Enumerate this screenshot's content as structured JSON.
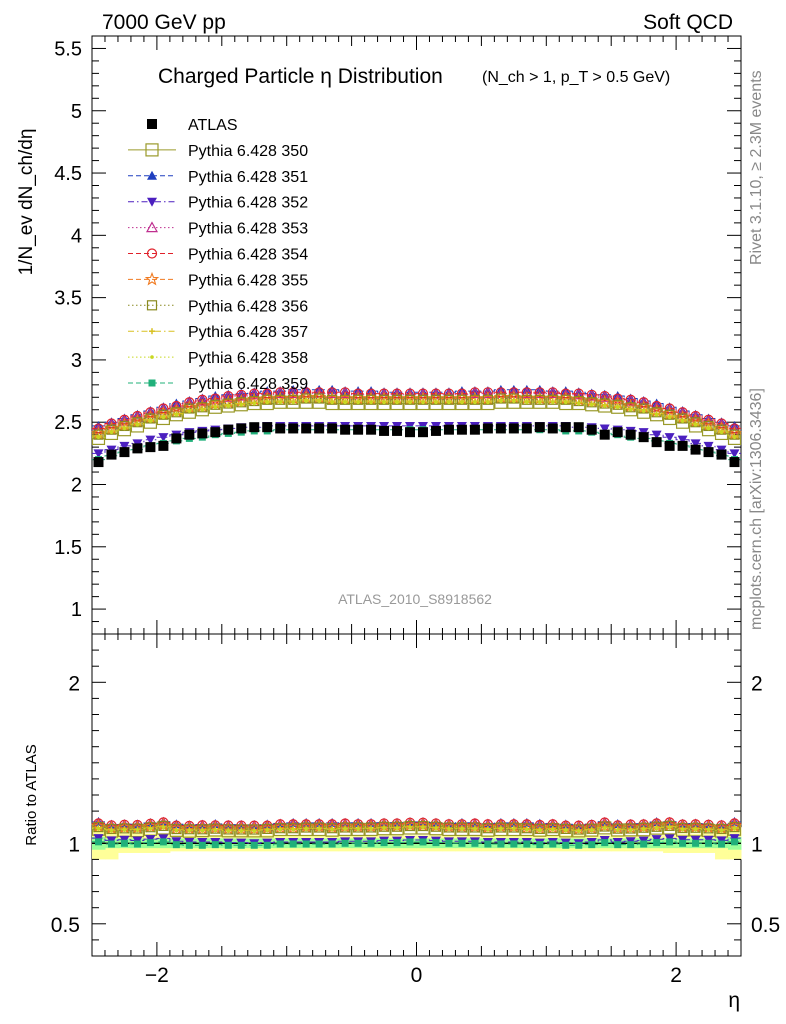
{
  "header": {
    "left": "7000 GeV pp",
    "right": "Soft QCD"
  },
  "side_labels": {
    "right_top": "Rivet 3.1.10, ≥ 2.3M events",
    "right_bottom": "mcplots.cern.ch [arXiv:1306.3436]"
  },
  "analysis_label": "ATLAS_2010_S8918562",
  "colors": {
    "ATLAS": "#000000",
    "p350": "#9a9a2a",
    "p351": "#1f3fbf",
    "p352": "#4b1fbf",
    "p353": "#bf2f8f",
    "p354": "#e0202a",
    "p355": "#f07a20",
    "p356": "#8a8a20",
    "p357": "#d8c020",
    "p358": "#c8d820",
    "p359": "#20b07a",
    "band_inner": "#99ff99",
    "band_outer": "#ffff99"
  },
  "chart_data": [
    {
      "type": "scatter",
      "title": "Charged Particle η Distribution",
      "title_suffix": "(N_ch > 1, p_T > 0.5 GeV)",
      "ylabel": "1/N_ev dN_ch/dη",
      "xlim": [
        -2.5,
        2.5
      ],
      "ylim": [
        0.8,
        5.6
      ],
      "grid": false,
      "legend_position": "top-left",
      "x_ticks": [
        -2,
        0,
        2
      ],
      "y_ticks": [
        "1",
        "1.5",
        "2",
        "2.5",
        "3",
        "3.5",
        "4",
        "4.5",
        "5",
        "5.5"
      ],
      "x": [
        -2.45,
        -2.35,
        -2.25,
        -2.15,
        -2.05,
        -1.95,
        -1.85,
        -1.75,
        -1.65,
        -1.55,
        -1.45,
        -1.35,
        -1.25,
        -1.15,
        -1.05,
        -0.95,
        -0.85,
        -0.75,
        -0.65,
        -0.55,
        -0.45,
        -0.35,
        -0.25,
        -0.15,
        -0.05,
        0.05,
        0.15,
        0.25,
        0.35,
        0.45,
        0.55,
        0.65,
        0.75,
        0.85,
        0.95,
        1.05,
        1.15,
        1.25,
        1.35,
        1.45,
        1.55,
        1.65,
        1.75,
        1.85,
        1.95,
        2.05,
        2.15,
        2.25,
        2.35,
        2.45
      ],
      "series": [
        {
          "name": "ATLAS",
          "key": "ATLAS",
          "marker": "square-filled",
          "style": "none",
          "values": [
            2.18,
            2.24,
            2.26,
            2.29,
            2.3,
            2.31,
            2.37,
            2.4,
            2.41,
            2.42,
            2.44,
            2.45,
            2.46,
            2.46,
            2.45,
            2.45,
            2.45,
            2.45,
            2.45,
            2.44,
            2.44,
            2.44,
            2.43,
            2.43,
            2.42,
            2.42,
            2.43,
            2.44,
            2.44,
            2.44,
            2.45,
            2.45,
            2.45,
            2.45,
            2.46,
            2.45,
            2.46,
            2.46,
            2.44,
            2.4,
            2.42,
            2.4,
            2.38,
            2.34,
            2.31,
            2.31,
            2.28,
            2.26,
            2.24,
            2.18
          ]
        },
        {
          "name": "Pythia 6.428 350",
          "key": "p350",
          "marker": "square-open-large",
          "style": "solid",
          "values": [
            2.37,
            2.41,
            2.44,
            2.47,
            2.5,
            2.53,
            2.56,
            2.58,
            2.6,
            2.62,
            2.63,
            2.64,
            2.65,
            2.65,
            2.66,
            2.66,
            2.66,
            2.66,
            2.65,
            2.65,
            2.65,
            2.65,
            2.65,
            2.65,
            2.65,
            2.65,
            2.65,
            2.65,
            2.65,
            2.65,
            2.65,
            2.66,
            2.66,
            2.66,
            2.66,
            2.66,
            2.65,
            2.65,
            2.64,
            2.63,
            2.62,
            2.6,
            2.58,
            2.56,
            2.53,
            2.5,
            2.47,
            2.44,
            2.41,
            2.37
          ]
        },
        {
          "name": "Pythia 6.428 351",
          "key": "p351",
          "marker": "triangle-up",
          "style": "dash",
          "values": [
            2.47,
            2.5,
            2.53,
            2.56,
            2.59,
            2.62,
            2.65,
            2.67,
            2.69,
            2.71,
            2.72,
            2.73,
            2.74,
            2.75,
            2.75,
            2.76,
            2.76,
            2.76,
            2.76,
            2.75,
            2.75,
            2.75,
            2.74,
            2.74,
            2.74,
            2.74,
            2.74,
            2.74,
            2.75,
            2.75,
            2.75,
            2.76,
            2.76,
            2.76,
            2.76,
            2.75,
            2.75,
            2.74,
            2.73,
            2.72,
            2.71,
            2.69,
            2.67,
            2.65,
            2.62,
            2.59,
            2.56,
            2.53,
            2.5,
            2.47
          ]
        },
        {
          "name": "Pythia 6.428 352",
          "key": "p352",
          "marker": "triangle-down",
          "style": "dashdot",
          "values": [
            2.25,
            2.28,
            2.31,
            2.33,
            2.36,
            2.38,
            2.4,
            2.42,
            2.43,
            2.44,
            2.45,
            2.46,
            2.46,
            2.47,
            2.47,
            2.47,
            2.47,
            2.47,
            2.47,
            2.47,
            2.47,
            2.47,
            2.47,
            2.47,
            2.47,
            2.47,
            2.47,
            2.47,
            2.47,
            2.47,
            2.47,
            2.47,
            2.47,
            2.47,
            2.47,
            2.47,
            2.47,
            2.46,
            2.46,
            2.45,
            2.44,
            2.43,
            2.42,
            2.4,
            2.38,
            2.36,
            2.33,
            2.31,
            2.28,
            2.25
          ]
        },
        {
          "name": "Pythia 6.428 353",
          "key": "p353",
          "marker": "triangle-up-open",
          "style": "dot",
          "values": [
            2.44,
            2.48,
            2.51,
            2.54,
            2.57,
            2.6,
            2.62,
            2.65,
            2.67,
            2.68,
            2.7,
            2.71,
            2.72,
            2.72,
            2.73,
            2.73,
            2.73,
            2.73,
            2.73,
            2.73,
            2.72,
            2.72,
            2.72,
            2.72,
            2.72,
            2.72,
            2.72,
            2.72,
            2.72,
            2.73,
            2.73,
            2.73,
            2.73,
            2.73,
            2.73,
            2.73,
            2.72,
            2.72,
            2.71,
            2.7,
            2.68,
            2.67,
            2.65,
            2.62,
            2.6,
            2.57,
            2.54,
            2.51,
            2.48,
            2.44
          ]
        },
        {
          "name": "Pythia 6.428 354",
          "key": "p354",
          "marker": "circle-open",
          "style": "dash",
          "values": [
            2.45,
            2.49,
            2.52,
            2.55,
            2.58,
            2.61,
            2.63,
            2.66,
            2.68,
            2.69,
            2.71,
            2.72,
            2.73,
            2.73,
            2.74,
            2.74,
            2.74,
            2.74,
            2.74,
            2.74,
            2.73,
            2.73,
            2.73,
            2.73,
            2.73,
            2.73,
            2.73,
            2.73,
            2.73,
            2.74,
            2.74,
            2.74,
            2.74,
            2.74,
            2.74,
            2.74,
            2.73,
            2.73,
            2.72,
            2.71,
            2.69,
            2.68,
            2.66,
            2.63,
            2.61,
            2.58,
            2.55,
            2.52,
            2.49,
            2.45
          ]
        },
        {
          "name": "Pythia 6.428 355",
          "key": "p355",
          "marker": "star-open",
          "style": "dash",
          "values": [
            2.41,
            2.45,
            2.48,
            2.51,
            2.54,
            2.57,
            2.59,
            2.62,
            2.63,
            2.65,
            2.66,
            2.67,
            2.68,
            2.69,
            2.69,
            2.69,
            2.7,
            2.7,
            2.69,
            2.69,
            2.69,
            2.69,
            2.69,
            2.69,
            2.69,
            2.69,
            2.69,
            2.69,
            2.69,
            2.69,
            2.69,
            2.7,
            2.7,
            2.69,
            2.69,
            2.69,
            2.69,
            2.68,
            2.67,
            2.66,
            2.65,
            2.63,
            2.62,
            2.59,
            2.57,
            2.54,
            2.51,
            2.48,
            2.45,
            2.41
          ]
        },
        {
          "name": "Pythia 6.428 356",
          "key": "p356",
          "marker": "square-open",
          "style": "dot",
          "values": [
            2.4,
            2.44,
            2.47,
            2.5,
            2.53,
            2.56,
            2.58,
            2.61,
            2.62,
            2.64,
            2.65,
            2.66,
            2.67,
            2.68,
            2.68,
            2.68,
            2.69,
            2.69,
            2.68,
            2.68,
            2.68,
            2.68,
            2.68,
            2.68,
            2.68,
            2.68,
            2.68,
            2.68,
            2.68,
            2.68,
            2.68,
            2.69,
            2.69,
            2.68,
            2.68,
            2.68,
            2.68,
            2.67,
            2.66,
            2.65,
            2.64,
            2.62,
            2.61,
            2.58,
            2.56,
            2.53,
            2.5,
            2.47,
            2.44,
            2.4
          ]
        },
        {
          "name": "Pythia 6.428 357",
          "key": "p357",
          "marker": "cross-small",
          "style": "dashdot",
          "values": [
            2.39,
            2.43,
            2.46,
            2.49,
            2.52,
            2.55,
            2.57,
            2.6,
            2.61,
            2.63,
            2.64,
            2.65,
            2.66,
            2.67,
            2.67,
            2.67,
            2.68,
            2.68,
            2.67,
            2.67,
            2.67,
            2.67,
            2.67,
            2.67,
            2.67,
            2.67,
            2.67,
            2.67,
            2.67,
            2.67,
            2.67,
            2.68,
            2.68,
            2.67,
            2.67,
            2.67,
            2.67,
            2.66,
            2.65,
            2.64,
            2.63,
            2.61,
            2.6,
            2.57,
            2.55,
            2.52,
            2.49,
            2.46,
            2.43,
            2.39
          ]
        },
        {
          "name": "Pythia 6.428 358",
          "key": "p358",
          "marker": "dot-small",
          "style": "dot",
          "values": [
            2.38,
            2.42,
            2.45,
            2.48,
            2.51,
            2.54,
            2.56,
            2.59,
            2.6,
            2.62,
            2.63,
            2.64,
            2.65,
            2.66,
            2.66,
            2.66,
            2.67,
            2.67,
            2.66,
            2.66,
            2.66,
            2.66,
            2.66,
            2.66,
            2.66,
            2.66,
            2.66,
            2.66,
            2.66,
            2.66,
            2.66,
            2.67,
            2.67,
            2.66,
            2.66,
            2.66,
            2.66,
            2.65,
            2.64,
            2.63,
            2.62,
            2.6,
            2.59,
            2.56,
            2.54,
            2.51,
            2.48,
            2.45,
            2.42,
            2.38
          ]
        },
        {
          "name": "Pythia 6.428 359",
          "key": "p359",
          "marker": "square-filled-small",
          "style": "dash",
          "values": [
            2.2,
            2.23,
            2.26,
            2.28,
            2.31,
            2.33,
            2.35,
            2.37,
            2.38,
            2.4,
            2.41,
            2.42,
            2.43,
            2.43,
            2.44,
            2.44,
            2.44,
            2.44,
            2.44,
            2.44,
            2.44,
            2.44,
            2.44,
            2.44,
            2.44,
            2.44,
            2.44,
            2.44,
            2.44,
            2.44,
            2.44,
            2.44,
            2.44,
            2.44,
            2.44,
            2.44,
            2.43,
            2.43,
            2.42,
            2.41,
            2.4,
            2.38,
            2.37,
            2.35,
            2.33,
            2.31,
            2.28,
            2.26,
            2.23,
            2.2
          ]
        }
      ]
    },
    {
      "type": "scatter",
      "title": "",
      "ylabel": "Ratio to ATLAS",
      "xlabel": "η",
      "xlim": [
        -2.5,
        2.5
      ],
      "ylim": [
        0.3,
        2.3
      ],
      "grid": false,
      "x_ticks": [
        -2,
        0,
        2
      ],
      "y_ticks_left": [
        "0.5",
        "1",
        "2"
      ],
      "y_ticks_right": [
        "0.5",
        "1",
        "2"
      ],
      "band_inner_halfwidth": [
        0.04,
        0.03,
        0.03,
        0.03,
        0.03,
        0.03,
        0.03,
        0.03,
        0.03,
        0.03,
        0.03,
        0.03,
        0.03,
        0.03,
        0.03,
        0.03,
        0.03,
        0.03,
        0.03,
        0.03,
        0.03,
        0.03,
        0.03,
        0.03,
        0.03,
        0.03,
        0.03,
        0.03,
        0.03,
        0.03,
        0.03,
        0.03,
        0.03,
        0.03,
        0.03,
        0.03,
        0.03,
        0.03,
        0.03,
        0.03,
        0.03,
        0.03,
        0.03,
        0.03,
        0.03,
        0.03,
        0.03,
        0.03,
        0.03,
        0.04
      ],
      "band_outer_halfwidth": [
        0.1,
        0.1,
        0.06,
        0.06,
        0.06,
        0.06,
        0.05,
        0.05,
        0.05,
        0.05,
        0.05,
        0.05,
        0.05,
        0.05,
        0.05,
        0.05,
        0.05,
        0.05,
        0.05,
        0.05,
        0.05,
        0.05,
        0.05,
        0.05,
        0.05,
        0.05,
        0.05,
        0.05,
        0.05,
        0.05,
        0.05,
        0.05,
        0.05,
        0.05,
        0.05,
        0.05,
        0.05,
        0.05,
        0.05,
        0.05,
        0.05,
        0.05,
        0.05,
        0.05,
        0.06,
        0.06,
        0.06,
        0.06,
        0.1,
        0.1
      ]
    }
  ]
}
